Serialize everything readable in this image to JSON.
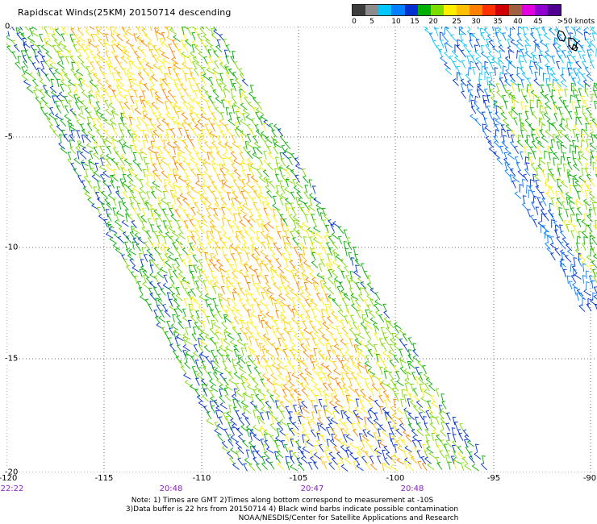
{
  "title": "Rapidscat Winds(25KM) 20150714 descending",
  "legend": {
    "colors": [
      "#3c3c3c",
      "#8c8c8c",
      "#00c8ff",
      "#0080ff",
      "#0030d0",
      "#00b000",
      "#7cdc00",
      "#ffee00",
      "#ffc000",
      "#ff8000",
      "#ff3000",
      "#d00000",
      "#a06040",
      "#e000e0",
      "#9000d0",
      "#500090"
    ],
    "labels": [
      "0",
      "5",
      "10",
      "15",
      "20",
      "25",
      "30",
      "35",
      "40",
      "45",
      ">50 knots"
    ]
  },
  "map": {
    "lon_labels": [
      "-120",
      "-115",
      "-110",
      "-105",
      "-100",
      "-95",
      "-90"
    ],
    "lat_labels": [
      "0",
      "-5",
      "-10",
      "-15",
      "-20"
    ],
    "time_labels": [
      "22:22",
      "20:48",
      "20:47",
      "20:48"
    ]
  },
  "notes": {
    "line1": "Note: 1) Times are GMT 2)Times along bottom correspond to measurement at -10S",
    "line2": "3)Data buffer is 22 hrs from 20150714 4) Black wind barbs indicate possible contamination",
    "line3": "NOAA/NESDIS/Center for Satellite Applications and Research"
  }
}
